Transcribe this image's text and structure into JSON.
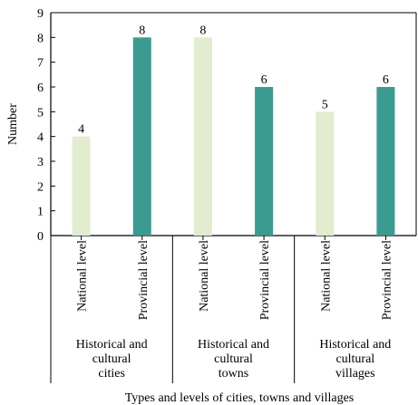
{
  "chart_data": {
    "type": "bar",
    "xlabel": "Types and levels of cities, towns and villages",
    "ylabel": "Number",
    "ylim": [
      0,
      9
    ],
    "yticks": [
      0,
      1,
      2,
      3,
      4,
      5,
      6,
      7,
      8,
      9
    ],
    "grid": false,
    "groups": [
      {
        "label": [
          "Historical and",
          "cultural",
          "cities"
        ],
        "bars": [
          {
            "category": "National level",
            "value": 4
          },
          {
            "category": "Provincial level",
            "value": 8
          }
        ]
      },
      {
        "label": [
          "Historical and",
          "cultural",
          "towns"
        ],
        "bars": [
          {
            "category": "National level",
            "value": 8
          },
          {
            "category": "Provincial level",
            "value": 6
          }
        ]
      },
      {
        "label": [
          "Historical and",
          "cultural",
          "villages"
        ],
        "bars": [
          {
            "category": "National level",
            "value": 5
          },
          {
            "category": "Provincial level",
            "value": 6
          }
        ]
      }
    ],
    "colors": {
      "National level": "#e2edcf",
      "Provincial level": "#3a9b91"
    }
  }
}
